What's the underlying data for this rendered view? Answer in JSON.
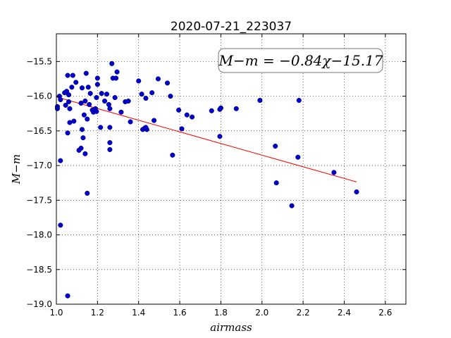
{
  "chart_data": {
    "type": "scatter",
    "title": "2020-07-21_223037",
    "xlabel": "airmass",
    "ylabel": "M−m",
    "xlim": [
      1.0,
      2.7
    ],
    "ylim": [
      -19.0,
      -15.1
    ],
    "y_inverted": true,
    "grid": true,
    "x_ticks": [
      "1.0",
      "1.2",
      "1.4",
      "1.6",
      "1.8",
      "2.0",
      "2.2",
      "2.4",
      "2.6"
    ],
    "y_ticks": [
      "−15.5",
      "−16.0",
      "−16.5",
      "−17.0",
      "−17.5",
      "−18.0",
      "−18.5",
      "−19.0"
    ],
    "annotation": "M−m = −0.84χ−15.17",
    "fit": {
      "slope": -0.84,
      "intercept": -15.17,
      "x_range": [
        1.0,
        2.46
      ],
      "color": "#ff0000"
    },
    "point_color": "#0000cc",
    "points": [
      {
        "x": 1.005,
        "y": -16.15
      },
      {
        "x": 1.005,
        "y": -16.18
      },
      {
        "x": 1.015,
        "y": -16.0
      },
      {
        "x": 1.02,
        "y": -16.05
      },
      {
        "x": 1.02,
        "y": -16.93
      },
      {
        "x": 1.02,
        "y": -17.86
      },
      {
        "x": 1.04,
        "y": -15.95
      },
      {
        "x": 1.045,
        "y": -16.13
      },
      {
        "x": 1.05,
        "y": -15.93
      },
      {
        "x": 1.055,
        "y": -15.7
      },
      {
        "x": 1.055,
        "y": -16.53
      },
      {
        "x": 1.06,
        "y": -15.98
      },
      {
        "x": 1.06,
        "y": -16.08
      },
      {
        "x": 1.065,
        "y": -16.38
      },
      {
        "x": 1.065,
        "y": -16.18
      },
      {
        "x": 1.055,
        "y": -18.88
      },
      {
        "x": 1.075,
        "y": -15.87
      },
      {
        "x": 1.08,
        "y": -15.7
      },
      {
        "x": 1.085,
        "y": -16.36
      },
      {
        "x": 1.095,
        "y": -15.8
      },
      {
        "x": 1.11,
        "y": -16.78
      },
      {
        "x": 1.12,
        "y": -16.75
      },
      {
        "x": 1.12,
        "y": -16.1
      },
      {
        "x": 1.125,
        "y": -15.88
      },
      {
        "x": 1.125,
        "y": -16.48
      },
      {
        "x": 1.13,
        "y": -16.6
      },
      {
        "x": 1.135,
        "y": -16.27
      },
      {
        "x": 1.14,
        "y": -16.07
      },
      {
        "x": 1.14,
        "y": -16.83
      },
      {
        "x": 1.145,
        "y": -15.67
      },
      {
        "x": 1.15,
        "y": -16.33
      },
      {
        "x": 1.15,
        "y": -17.4
      },
      {
        "x": 1.155,
        "y": -15.87
      },
      {
        "x": 1.16,
        "y": -16.12
      },
      {
        "x": 1.165,
        "y": -15.96
      },
      {
        "x": 1.175,
        "y": -16.2
      },
      {
        "x": 1.18,
        "y": -16.23
      },
      {
        "x": 1.19,
        "y": -16.18
      },
      {
        "x": 1.195,
        "y": -16.02
      },
      {
        "x": 1.195,
        "y": -16.22
      },
      {
        "x": 1.2,
        "y": -15.83
      },
      {
        "x": 1.2,
        "y": -15.74
      },
      {
        "x": 1.215,
        "y": -16.45
      },
      {
        "x": 1.22,
        "y": -15.96
      },
      {
        "x": 1.235,
        "y": -16.07
      },
      {
        "x": 1.245,
        "y": -15.97
      },
      {
        "x": 1.255,
        "y": -16.12
      },
      {
        "x": 1.26,
        "y": -16.18
      },
      {
        "x": 1.26,
        "y": -16.45
      },
      {
        "x": 1.26,
        "y": -16.67
      },
      {
        "x": 1.26,
        "y": -16.77
      },
      {
        "x": 1.27,
        "y": -15.53
      },
      {
        "x": 1.275,
        "y": -15.74
      },
      {
        "x": 1.285,
        "y": -16.02
      },
      {
        "x": 1.29,
        "y": -15.74
      },
      {
        "x": 1.295,
        "y": -15.65
      },
      {
        "x": 1.315,
        "y": -16.23
      },
      {
        "x": 1.335,
        "y": -16.08
      },
      {
        "x": 1.35,
        "y": -16.07
      },
      {
        "x": 1.36,
        "y": -16.37
      },
      {
        "x": 1.4,
        "y": -15.78
      },
      {
        "x": 1.415,
        "y": -15.97
      },
      {
        "x": 1.42,
        "y": -16.48
      },
      {
        "x": 1.43,
        "y": -16.46
      },
      {
        "x": 1.435,
        "y": -16.03
      },
      {
        "x": 1.44,
        "y": -16.48
      },
      {
        "x": 1.435,
        "y": -16.45
      },
      {
        "x": 1.465,
        "y": -15.95
      },
      {
        "x": 1.475,
        "y": -16.35
      },
      {
        "x": 1.495,
        "y": -15.75
      },
      {
        "x": 1.54,
        "y": -15.81
      },
      {
        "x": 1.555,
        "y": -16.0
      },
      {
        "x": 1.565,
        "y": -16.85
      },
      {
        "x": 1.595,
        "y": -16.2
      },
      {
        "x": 1.61,
        "y": -16.47
      },
      {
        "x": 1.635,
        "y": -16.27
      },
      {
        "x": 1.66,
        "y": -16.3
      },
      {
        "x": 1.755,
        "y": -16.21
      },
      {
        "x": 1.795,
        "y": -16.19
      },
      {
        "x": 1.8,
        "y": -16.17
      },
      {
        "x": 1.795,
        "y": -16.58
      },
      {
        "x": 1.875,
        "y": -16.18
      },
      {
        "x": 1.99,
        "y": -16.06
      },
      {
        "x": 2.065,
        "y": -16.72
      },
      {
        "x": 2.07,
        "y": -17.25
      },
      {
        "x": 2.145,
        "y": -17.58
      },
      {
        "x": 2.175,
        "y": -16.88
      },
      {
        "x": 2.18,
        "y": -16.06
      },
      {
        "x": 2.35,
        "y": -17.1
      },
      {
        "x": 2.46,
        "y": -17.38
      }
    ]
  }
}
